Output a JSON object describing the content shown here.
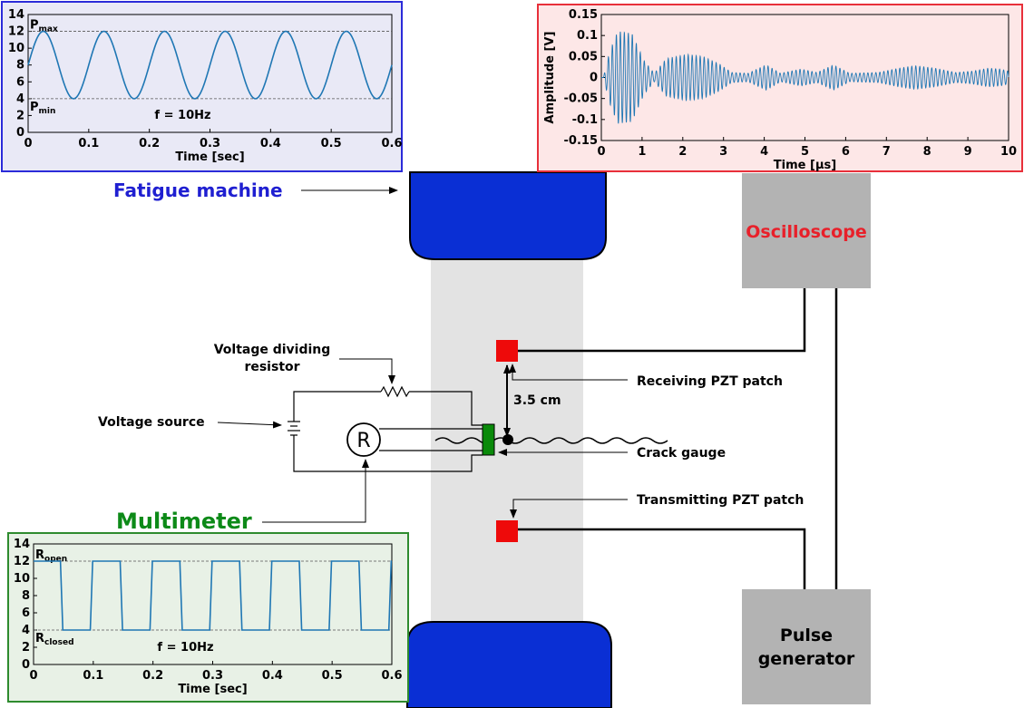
{
  "colors": {
    "blue_box": "#2b2bd9",
    "blue_fill": "#e9e9f6",
    "red_box": "#e8303a",
    "red_fill": "#fde7e7",
    "green_box": "#2e8b2e",
    "green_fill": "#e8f1e6",
    "grip": "#0a2fd4",
    "specimen": "#e3e3e3",
    "equipment": "#b3b3b3",
    "pzt": "#ee0a0a",
    "gauge": "#0a8a0a",
    "signal": "#1f77b4",
    "fatigue_label": "#1f1fd1",
    "multimeter_label": "#0d8a18",
    "oscilloscope_label": "#e8202a"
  },
  "labels": {
    "fatigue_machine": "Fatigue machine",
    "oscilloscope": "Oscilloscope",
    "pulse_generator_line1": "Pulse",
    "pulse_generator_line2": "generator",
    "multimeter": "Multimeter",
    "voltage_dividing_resistor_line1": "Voltage dividing",
    "voltage_dividing_resistor_line2": "resistor",
    "voltage_source": "Voltage source",
    "receiving_pzt": "Receiving PZT patch",
    "transmitting_pzt": "Transmitting PZT patch",
    "crack_gauge": "Crack gauge",
    "distance": "3.5 cm",
    "meter_symbol": "R"
  },
  "chart_data": [
    {
      "id": "load",
      "type": "line",
      "xlabel": "Time [sec]",
      "ylabel": "",
      "xlim": [
        0,
        0.6
      ],
      "ylim": [
        0,
        14
      ],
      "xticks": [
        "0",
        "0.1",
        "0.2",
        "0.3",
        "0.4",
        "0.5",
        "0.6"
      ],
      "yticks": [
        "0",
        "2",
        "4",
        "6",
        "8",
        "10",
        "12",
        "14"
      ],
      "annotation": "f = 10Hz",
      "ref_lines": [
        {
          "value": 12,
          "base": "P",
          "sub": "max"
        },
        {
          "value": 4,
          "base": "P",
          "sub": "min"
        }
      ],
      "signal": {
        "kind": "sine",
        "mean": 8,
        "amplitude": 4,
        "frequency_hz": 10,
        "phase_deg": 0
      },
      "grid": false
    },
    {
      "id": "amplitude",
      "type": "line",
      "xlabel": "Time [μs]",
      "ylabel": "Amplitude [V]",
      "xlim": [
        0,
        10
      ],
      "ylim": [
        -0.15,
        0.15
      ],
      "xticks": [
        "0",
        "1",
        "2",
        "3",
        "4",
        "5",
        "6",
        "7",
        "8",
        "9",
        "10"
      ],
      "yticks": [
        "-0.15",
        "-0.1",
        "-0.05",
        "0",
        "0.05",
        "0.1",
        "0.15"
      ],
      "signal": {
        "kind": "wave_packets",
        "carrier_per_us": 10.2,
        "start_us": 0.05,
        "envelope": [
          {
            "t": 0.05,
            "a": 0.0
          },
          {
            "t": 0.2,
            "a": 0.06
          },
          {
            "t": 0.4,
            "a": 0.11
          },
          {
            "t": 0.75,
            "a": 0.105
          },
          {
            "t": 1.05,
            "a": 0.04
          },
          {
            "t": 1.3,
            "a": 0.01
          },
          {
            "t": 1.6,
            "a": 0.045
          },
          {
            "t": 2.1,
            "a": 0.055
          },
          {
            "t": 2.5,
            "a": 0.05
          },
          {
            "t": 2.9,
            "a": 0.032
          },
          {
            "t": 3.2,
            "a": 0.012
          },
          {
            "t": 3.6,
            "a": 0.01
          },
          {
            "t": 4.05,
            "a": 0.03
          },
          {
            "t": 4.4,
            "a": 0.01
          },
          {
            "t": 4.9,
            "a": 0.02
          },
          {
            "t": 5.3,
            "a": 0.012
          },
          {
            "t": 5.7,
            "a": 0.03
          },
          {
            "t": 6.1,
            "a": 0.01
          },
          {
            "t": 6.8,
            "a": 0.012
          },
          {
            "t": 7.3,
            "a": 0.022
          },
          {
            "t": 7.7,
            "a": 0.028
          },
          {
            "t": 8.2,
            "a": 0.022
          },
          {
            "t": 8.7,
            "a": 0.012
          },
          {
            "t": 9.1,
            "a": 0.015
          },
          {
            "t": 9.5,
            "a": 0.022
          },
          {
            "t": 9.8,
            "a": 0.02
          },
          {
            "t": 10.0,
            "a": 0.015
          }
        ]
      },
      "grid": false
    },
    {
      "id": "resistance",
      "type": "line",
      "xlabel": "Time [sec]",
      "ylabel": "",
      "xlim": [
        0,
        0.6
      ],
      "ylim": [
        0,
        14
      ],
      "xticks": [
        "0",
        "0.1",
        "0.2",
        "0.3",
        "0.4",
        "0.5",
        "0.6"
      ],
      "yticks": [
        "0",
        "2",
        "4",
        "6",
        "8",
        "10",
        "12",
        "14"
      ],
      "annotation": "f = 10Hz",
      "ref_lines": [
        {
          "value": 12,
          "base": "R",
          "sub": "open"
        },
        {
          "value": 4,
          "base": "R",
          "sub": "closed"
        }
      ],
      "signal": {
        "kind": "square",
        "high": 12,
        "low": 4,
        "frequency_hz": 10,
        "first_drop": 0.045,
        "low_duration": 0.05
      },
      "grid": false
    }
  ]
}
